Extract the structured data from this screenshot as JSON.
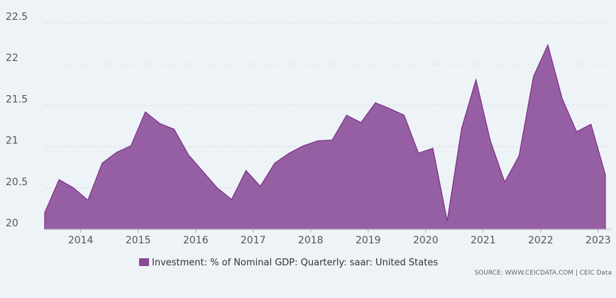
{
  "chart_data": {
    "type": "area",
    "x": [
      2013.375,
      2013.625,
      2013.875,
      2014.125,
      2014.375,
      2014.625,
      2014.875,
      2015.125,
      2015.375,
      2015.625,
      2015.875,
      2016.125,
      2016.375,
      2016.625,
      2016.875,
      2017.125,
      2017.375,
      2017.625,
      2017.875,
      2018.125,
      2018.375,
      2018.625,
      2018.875,
      2019.125,
      2019.375,
      2019.625,
      2019.875,
      2020.125,
      2020.375,
      2020.625,
      2020.875,
      2021.125,
      2021.375,
      2021.625,
      2021.875,
      2022.125,
      2022.375,
      2022.625,
      2022.875,
      2023.125
    ],
    "series": [
      {
        "name": "Investment: % of Nominal GDP: Quarterly: saar: United States",
        "color": "#8b4a97",
        "values": [
          20.2,
          20.6,
          20.5,
          20.35,
          20.8,
          20.93,
          21.01,
          21.42,
          21.28,
          21.21,
          20.9,
          20.7,
          20.5,
          20.36,
          20.71,
          20.52,
          20.8,
          20.92,
          21.01,
          21.07,
          21.08,
          21.38,
          21.29,
          21.53,
          21.46,
          21.38,
          20.92,
          20.98,
          20.1,
          21.22,
          21.81,
          21.07,
          20.57,
          20.89,
          21.85,
          22.23,
          21.58,
          21.18,
          21.27,
          20.66
        ]
      }
    ],
    "xlim": [
      2013.375,
      2023.125
    ],
    "xticks": [
      2014,
      2015,
      2016,
      2017,
      2018,
      2019,
      2020,
      2021,
      2022,
      2023
    ],
    "ylim": [
      20,
      22.5
    ],
    "yticks": [
      20,
      20.5,
      21,
      21.5,
      22,
      22.5
    ],
    "grid": true,
    "source": "SOURCE: WWW.CEICDATA.COM | CEIC Data"
  }
}
